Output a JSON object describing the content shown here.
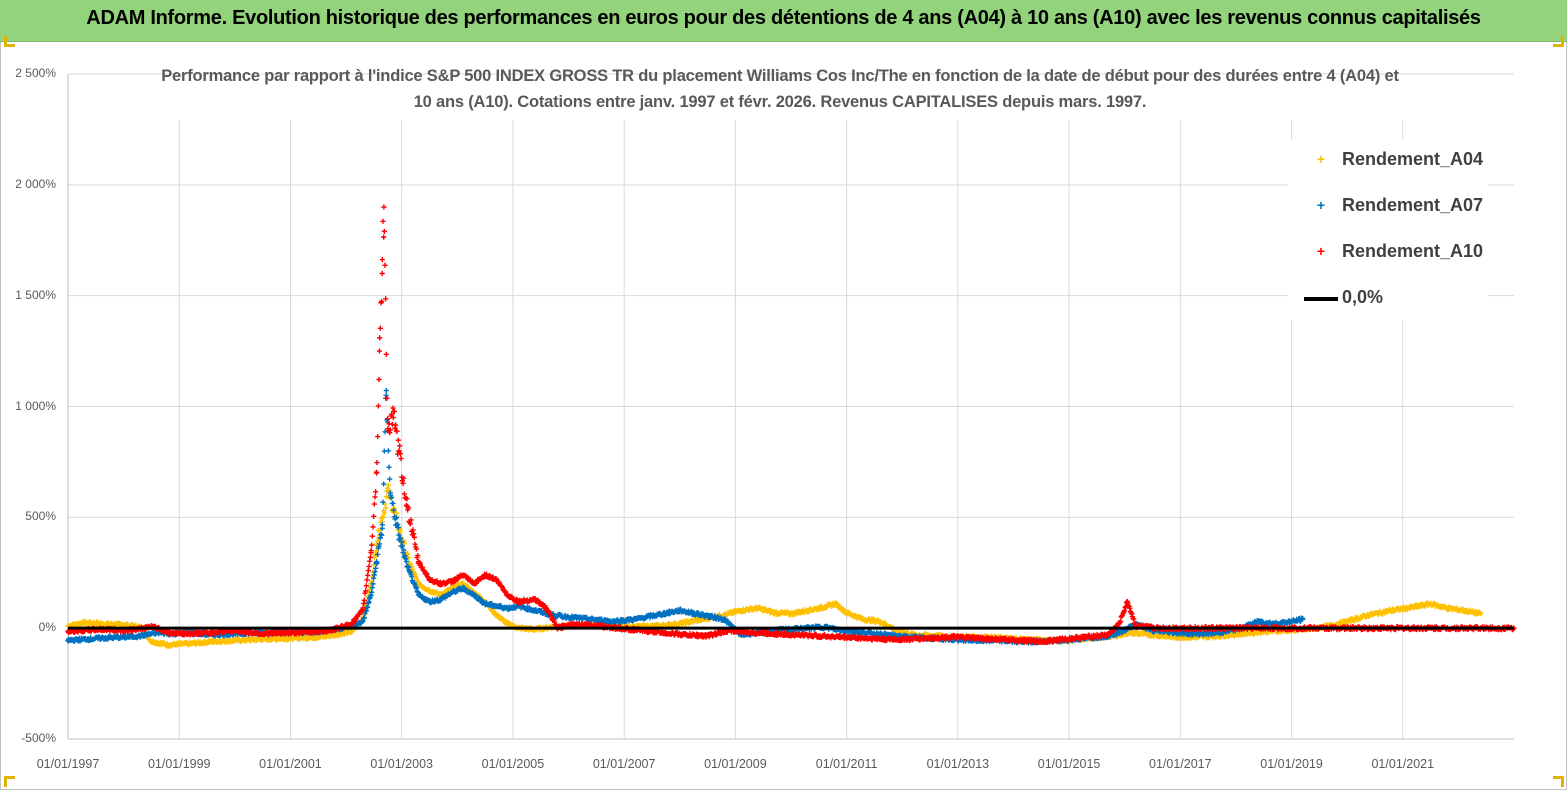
{
  "header": {
    "title": "ADAM Informe. Evolution historique des performances en euros pour des détentions de 4 ans (A04) à 10 ans (A10) avec les revenus connus capitalisés"
  },
  "chart_data": {
    "type": "scatter",
    "title": "Performance par rapport à l'indice S&P 500 INDEX GROSS TR  du placement Williams Cos Inc/The en fonction de la date de début pour des durées entre 4 (A04) et 10 ans (A10). Cotations entre janv. 1997 et févr. 2026. Revenus CAPITALISES depuis mars. 1997.",
    "xlabel": "",
    "ylabel": "",
    "x_range": [
      "1997-01-01",
      "2023-01-01"
    ],
    "ylim": [
      -500,
      2500
    ],
    "y_ticks": [
      "2 500%",
      "2 000%",
      "1 500%",
      "1 000%",
      "500%",
      "0%",
      "-500%"
    ],
    "y_tick_values": [
      2500,
      2000,
      1500,
      1000,
      500,
      0,
      -500
    ],
    "x_ticks": [
      "01/01/1997",
      "01/01/1999",
      "01/01/2001",
      "01/01/2003",
      "01/01/2005",
      "01/01/2007",
      "01/01/2009",
      "01/01/2011",
      "01/01/2013",
      "01/01/2015",
      "01/01/2017",
      "01/01/2019",
      "01/01/2021"
    ],
    "x_tick_years": [
      1997,
      1999,
      2001,
      2003,
      2005,
      2007,
      2009,
      2011,
      2013,
      2015,
      2017,
      2019,
      2021
    ],
    "grid": true,
    "legend_position": "top-right",
    "series": [
      {
        "name": "Rendement_A04",
        "color": "#ffc000",
        "marker": "+",
        "points": [
          [
            1997.0,
            10
          ],
          [
            1997.3,
            25
          ],
          [
            1997.6,
            20
          ],
          [
            1998.0,
            15
          ],
          [
            1998.3,
            5
          ],
          [
            1998.5,
            -60
          ],
          [
            1998.8,
            -75
          ],
          [
            1999.2,
            -70
          ],
          [
            1999.6,
            -60
          ],
          [
            2000.0,
            -55
          ],
          [
            2000.5,
            -50
          ],
          [
            2001.0,
            -45
          ],
          [
            2001.5,
            -40
          ],
          [
            2001.8,
            -30
          ],
          [
            2002.1,
            -15
          ],
          [
            2002.3,
            40
          ],
          [
            2002.45,
            200
          ],
          [
            2002.55,
            380
          ],
          [
            2002.65,
            500
          ],
          [
            2002.75,
            620
          ],
          [
            2002.85,
            540
          ],
          [
            2002.95,
            450
          ],
          [
            2003.1,
            320
          ],
          [
            2003.3,
            200
          ],
          [
            2003.5,
            170
          ],
          [
            2003.7,
            150
          ],
          [
            2003.9,
            180
          ],
          [
            2004.1,
            200
          ],
          [
            2004.3,
            160
          ],
          [
            2004.5,
            120
          ],
          [
            2004.7,
            60
          ],
          [
            2004.9,
            20
          ],
          [
            2005.1,
            0
          ],
          [
            2005.4,
            -5
          ],
          [
            2005.7,
            5
          ],
          [
            2006.0,
            10
          ],
          [
            2006.4,
            15
          ],
          [
            2006.8,
            10
          ],
          [
            2007.2,
            5
          ],
          [
            2007.6,
            10
          ],
          [
            2008.0,
            20
          ],
          [
            2008.4,
            40
          ],
          [
            2008.8,
            60
          ],
          [
            2009.1,
            80
          ],
          [
            2009.4,
            90
          ],
          [
            2009.7,
            70
          ],
          [
            2010.0,
            65
          ],
          [
            2010.3,
            80
          ],
          [
            2010.6,
            95
          ],
          [
            2010.8,
            110
          ],
          [
            2011.0,
            70
          ],
          [
            2011.3,
            40
          ],
          [
            2011.6,
            30
          ],
          [
            2011.9,
            -10
          ],
          [
            2012.2,
            -30
          ],
          [
            2012.6,
            -35
          ],
          [
            2013.0,
            -40
          ],
          [
            2013.4,
            -40
          ],
          [
            2013.8,
            -45
          ],
          [
            2014.2,
            -50
          ],
          [
            2014.6,
            -55
          ],
          [
            2015.0,
            -55
          ],
          [
            2015.4,
            -45
          ],
          [
            2015.8,
            -35
          ],
          [
            2016.1,
            -20
          ],
          [
            2016.5,
            -30
          ],
          [
            2016.9,
            -40
          ],
          [
            2017.3,
            -40
          ],
          [
            2017.7,
            -35
          ],
          [
            2018.1,
            -25
          ],
          [
            2018.5,
            -15
          ],
          [
            2018.9,
            -10
          ],
          [
            2019.3,
            -5
          ],
          [
            2019.7,
            10
          ],
          [
            2020.0,
            30
          ],
          [
            2020.4,
            60
          ],
          [
            2020.8,
            80
          ],
          [
            2021.2,
            95
          ],
          [
            2021.5,
            110
          ],
          [
            2021.8,
            90
          ],
          [
            2022.1,
            80
          ],
          [
            2022.4,
            65
          ]
        ]
      },
      {
        "name": "Rendement_A07",
        "color": "#0070c0",
        "marker": "+",
        "points": [
          [
            1997.0,
            -55
          ],
          [
            1997.3,
            -50
          ],
          [
            1997.6,
            -45
          ],
          [
            1998.0,
            -40
          ],
          [
            1998.3,
            -35
          ],
          [
            1998.6,
            -20
          ],
          [
            1998.9,
            -25
          ],
          [
            1999.2,
            -20
          ],
          [
            1999.6,
            -30
          ],
          [
            2000.0,
            -25
          ],
          [
            2000.5,
            -20
          ],
          [
            2001.0,
            -20
          ],
          [
            2001.5,
            -15
          ],
          [
            2001.8,
            -5
          ],
          [
            2002.1,
            10
          ],
          [
            2002.3,
            30
          ],
          [
            2002.45,
            150
          ],
          [
            2002.55,
            300
          ],
          [
            2002.65,
            450
          ],
          [
            2002.72,
            1050
          ],
          [
            2002.8,
            600
          ],
          [
            2002.95,
            420
          ],
          [
            2003.1,
            280
          ],
          [
            2003.3,
            150
          ],
          [
            2003.5,
            120
          ],
          [
            2003.7,
            130
          ],
          [
            2003.9,
            160
          ],
          [
            2004.1,
            180
          ],
          [
            2004.3,
            150
          ],
          [
            2004.5,
            110
          ],
          [
            2004.7,
            100
          ],
          [
            2004.9,
            90
          ],
          [
            2005.1,
            100
          ],
          [
            2005.4,
            80
          ],
          [
            2005.7,
            60
          ],
          [
            2006.0,
            50
          ],
          [
            2006.4,
            40
          ],
          [
            2006.8,
            30
          ],
          [
            2007.2,
            40
          ],
          [
            2007.6,
            60
          ],
          [
            2008.0,
            80
          ],
          [
            2008.4,
            60
          ],
          [
            2008.8,
            40
          ],
          [
            2009.1,
            -30
          ],
          [
            2009.4,
            -20
          ],
          [
            2009.7,
            -10
          ],
          [
            2010.0,
            -5
          ],
          [
            2010.3,
            0
          ],
          [
            2010.6,
            5
          ],
          [
            2010.9,
            -10
          ],
          [
            2011.3,
            -20
          ],
          [
            2011.7,
            -30
          ],
          [
            2012.1,
            -40
          ],
          [
            2012.5,
            -45
          ],
          [
            2012.9,
            -50
          ],
          [
            2013.3,
            -55
          ],
          [
            2013.7,
            -55
          ],
          [
            2014.1,
            -60
          ],
          [
            2014.5,
            -60
          ],
          [
            2014.9,
            -55
          ],
          [
            2015.3,
            -45
          ],
          [
            2015.7,
            -35
          ],
          [
            2016.0,
            -10
          ],
          [
            2016.2,
            20
          ],
          [
            2016.5,
            -10
          ],
          [
            2016.9,
            -20
          ],
          [
            2017.3,
            -25
          ],
          [
            2017.7,
            -20
          ],
          [
            2018.1,
            0
          ],
          [
            2018.4,
            30
          ],
          [
            2018.7,
            20
          ],
          [
            2019.0,
            30
          ],
          [
            2019.2,
            40
          ]
        ]
      },
      {
        "name": "Rendement_A10",
        "color": "#ff0000",
        "marker": "+",
        "points": [
          [
            1997.0,
            -15
          ],
          [
            1997.3,
            -10
          ],
          [
            1997.6,
            -5
          ],
          [
            1998.0,
            -10
          ],
          [
            1998.3,
            -5
          ],
          [
            1998.5,
            10
          ],
          [
            1998.8,
            -20
          ],
          [
            1999.2,
            -25
          ],
          [
            1999.6,
            -20
          ],
          [
            2000.0,
            -10
          ],
          [
            2000.5,
            -25
          ],
          [
            2001.0,
            -20
          ],
          [
            2001.5,
            -15
          ],
          [
            2001.8,
            -5
          ],
          [
            2002.1,
            20
          ],
          [
            2002.3,
            80
          ],
          [
            2002.45,
            350
          ],
          [
            2002.55,
            700
          ],
          [
            2002.6,
            1250
          ],
          [
            2002.65,
            1600
          ],
          [
            2002.68,
            1900
          ],
          [
            2002.75,
            900
          ],
          [
            2002.85,
            950
          ],
          [
            2002.95,
            800
          ],
          [
            2003.1,
            550
          ],
          [
            2003.3,
            300
          ],
          [
            2003.5,
            220
          ],
          [
            2003.7,
            200
          ],
          [
            2003.9,
            210
          ],
          [
            2004.1,
            240
          ],
          [
            2004.3,
            200
          ],
          [
            2004.5,
            240
          ],
          [
            2004.7,
            220
          ],
          [
            2004.9,
            150
          ],
          [
            2005.1,
            120
          ],
          [
            2005.4,
            130
          ],
          [
            2005.6,
            90
          ],
          [
            2005.8,
            0
          ],
          [
            2006.1,
            20
          ],
          [
            2006.5,
            10
          ],
          [
            2006.9,
            0
          ],
          [
            2007.3,
            -10
          ],
          [
            2007.7,
            -20
          ],
          [
            2008.1,
            -30
          ],
          [
            2008.5,
            -35
          ],
          [
            2008.9,
            -10
          ],
          [
            2009.3,
            -20
          ],
          [
            2009.7,
            -25
          ],
          [
            2010.1,
            -30
          ],
          [
            2010.5,
            -35
          ],
          [
            2010.9,
            -40
          ],
          [
            2011.3,
            -45
          ],
          [
            2011.7,
            -50
          ],
          [
            2012.1,
            -50
          ],
          [
            2012.5,
            -45
          ],
          [
            2012.9,
            -40
          ],
          [
            2013.3,
            -45
          ],
          [
            2013.7,
            -50
          ],
          [
            2014.1,
            -55
          ],
          [
            2014.5,
            -60
          ],
          [
            2014.9,
            -50
          ],
          [
            2015.3,
            -40
          ],
          [
            2015.7,
            -30
          ],
          [
            2015.9,
            20
          ],
          [
            2016.05,
            120
          ],
          [
            2016.2,
            10
          ],
          [
            2016.6,
            0
          ],
          [
            2017.0,
            0
          ],
          [
            2017.5,
            0
          ],
          [
            2018.0,
            0
          ],
          [
            2018.5,
            0
          ],
          [
            2019.0,
            0
          ],
          [
            2019.5,
            0
          ],
          [
            2020.0,
            0
          ],
          [
            2020.5,
            0
          ],
          [
            2021.0,
            0
          ],
          [
            2021.5,
            0
          ],
          [
            2022.0,
            0
          ],
          [
            2022.5,
            0
          ],
          [
            2023.0,
            0
          ]
        ]
      },
      {
        "name": "0,0%",
        "color": "#000000",
        "line": [
          [
            1997.0,
            0
          ],
          [
            2023.0,
            0
          ]
        ]
      }
    ]
  }
}
